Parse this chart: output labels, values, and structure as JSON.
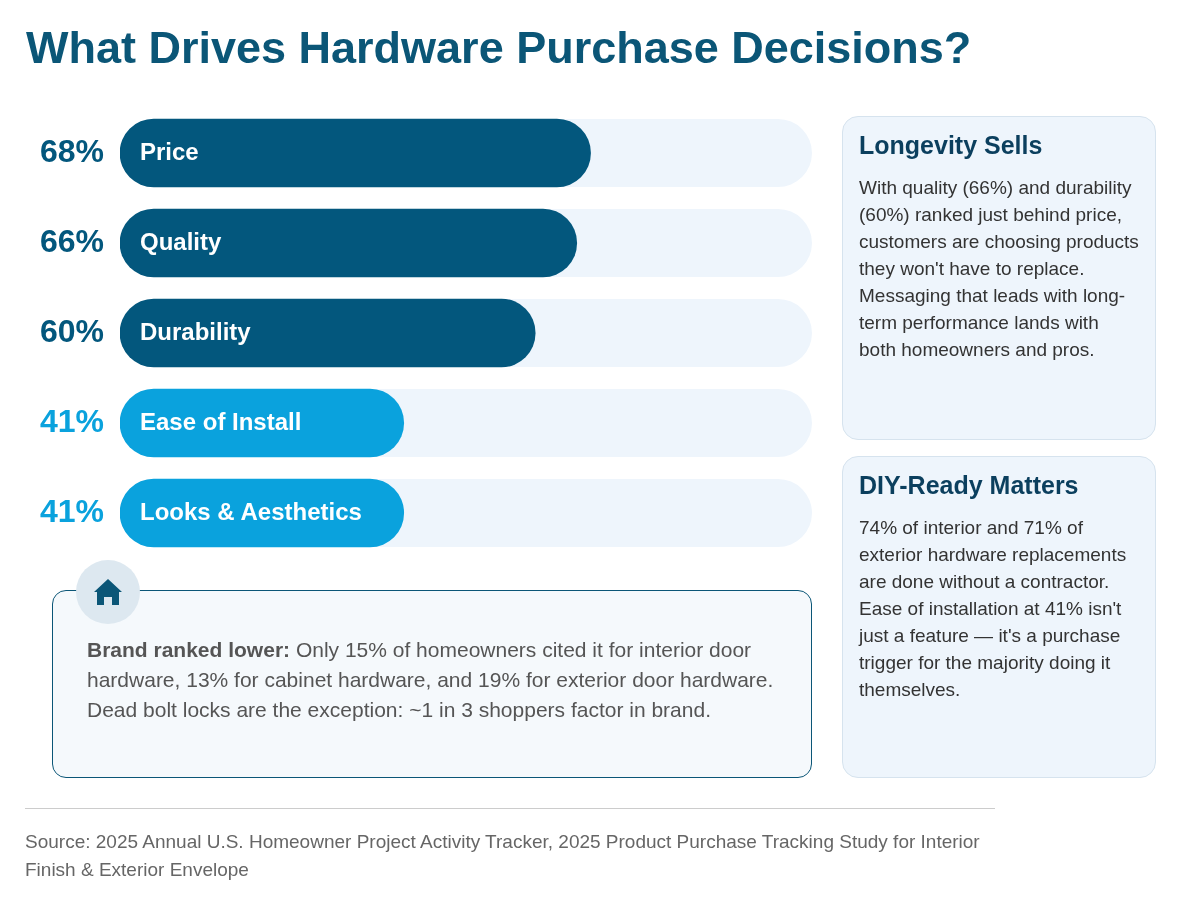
{
  "chart_data": [
    {
      "type": "bar",
      "orientation": "horizontal",
      "title": "What Drives Hardware Purchase Decisions?",
      "categories": [
        "Price",
        "Quality",
        "Durability",
        "Ease of Install",
        "Looks & Aesthetics"
      ],
      "values": [
        68,
        66,
        60,
        41,
        41
      ],
      "colors": [
        "#03577d",
        "#03577d",
        "#03577d",
        "#0aa2dd",
        "#0aa2dd"
      ],
      "value_labels": [
        "68%",
        "66%",
        "60%",
        "41%",
        "41%"
      ],
      "xlim": [
        0,
        100
      ],
      "annotations": [
        "Source: 2025 Annual U.S. Homeowner Project Activity Tracker, 2025 Product Purchase Tracking Study for Interior Finish & Exterior Envelope"
      ]
    },
    {
      "type": "other",
      "title": "Longevity Sells",
      "annotations": [
        "With quality (66%) and durability (60%) ranked just behind price, customers are choosing products they won't have to replace. Messaging that leads with long-term performance lands with both homeowners and pros."
      ]
    },
    {
      "type": "other",
      "title": "DIY-Ready Matters",
      "annotations": [
        "74% of interior and 71% of exterior hardware replacements are done without a contractor. Ease of installation at 41% isn't just a feature — it's a purchase trigger for the majority doing it themselves."
      ]
    },
    {
      "type": "other",
      "annotations": [
        "Brand ranked lower:",
        "Only 15% of homeowners cited it for interior door hardware, 13% for cabinet hardware, and 19% for exterior door hardware. Dead bolt locks are the exception: ~1 in 3 shoppers factor in brand."
      ]
    }
  ]
}
